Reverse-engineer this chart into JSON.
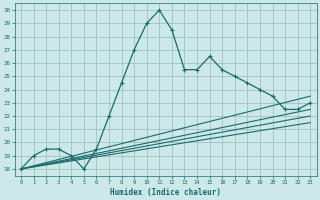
{
  "xlabel": "Humidex (Indice chaleur)",
  "bg_color": "#cce8e8",
  "grid_color": "#99bbbb",
  "line_color": "#1a6b6b",
  "xlim": [
    -0.5,
    23.5
  ],
  "ylim": [
    17.5,
    30.5
  ],
  "xticks": [
    0,
    1,
    2,
    3,
    4,
    5,
    6,
    7,
    8,
    9,
    10,
    11,
    12,
    13,
    14,
    15,
    16,
    17,
    18,
    19,
    20,
    21,
    22,
    23
  ],
  "yticks": [
    18,
    19,
    20,
    21,
    22,
    23,
    24,
    25,
    26,
    27,
    28,
    29,
    30
  ],
  "main_series_x": [
    0,
    1,
    2,
    3,
    4,
    5,
    6,
    7,
    8,
    9,
    10,
    11,
    12,
    13,
    14,
    15,
    16,
    17,
    18,
    19,
    20,
    21,
    22,
    23
  ],
  "main_series_y": [
    18,
    19,
    19.5,
    19.5,
    19,
    18,
    19.5,
    22,
    24.5,
    27,
    29,
    30,
    28.5,
    25.5,
    25.5,
    26.5,
    25.5,
    25,
    24.5,
    24,
    23.5,
    22.5,
    22.5,
    23
  ],
  "line1_x": [
    0,
    23
  ],
  "line1_y": [
    18,
    23.5
  ],
  "line2_x": [
    0,
    23
  ],
  "line2_y": [
    18,
    22.5
  ],
  "line3_x": [
    0,
    23
  ],
  "line3_y": [
    18,
    22.0
  ],
  "line4_x": [
    0,
    23
  ],
  "line4_y": [
    18,
    21.5
  ]
}
